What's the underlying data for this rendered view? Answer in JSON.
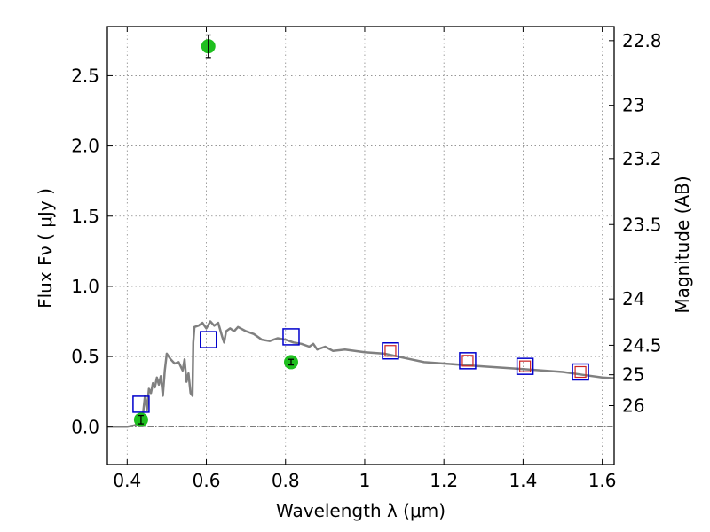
{
  "chart_data": {
    "type": "scatter",
    "xlabel": "Wavelength  λ (μm)",
    "ylabel": "Flux  Fν  ( μJy )",
    "ylabel_right": "Magnitude (AB)",
    "xlim": [
      0.35,
      1.63
    ],
    "ylim": [
      -0.27,
      2.85
    ],
    "grid": true,
    "x_ticks": [
      0.4,
      0.6,
      0.8,
      1.0,
      1.2,
      1.4,
      1.6
    ],
    "x_tick_labels": [
      "0.4",
      "0.6",
      "0.8",
      "1",
      "1.2",
      "1.4",
      "1.6"
    ],
    "y_ticks": [
      0.0,
      0.5,
      1.0,
      1.5,
      2.0,
      2.5
    ],
    "y_tick_labels": [
      "0.0",
      "0.5",
      "1.0",
      "1.5",
      "2.0",
      "2.5"
    ],
    "right_ticks": [
      {
        "flux": 2.75,
        "label": "22.8"
      },
      {
        "flux": 2.29,
        "label": "23"
      },
      {
        "flux": 1.91,
        "label": "23.2"
      },
      {
        "flux": 1.44,
        "label": "23.5"
      },
      {
        "flux": 0.91,
        "label": "24"
      },
      {
        "flux": 0.58,
        "label": "24.5"
      },
      {
        "flux": 0.37,
        "label": "25"
      },
      {
        "flux": 0.15,
        "label": "26"
      }
    ],
    "colors": {
      "model": "#808080",
      "observed": "#1fbf1f",
      "model_box": "#0000cc",
      "synthetic_box": "#cc2222",
      "grid": "#888888",
      "zero_line": "#555555"
    },
    "series": [
      {
        "style": "line",
        "points": [
          [
            0.35,
            0.0
          ],
          [
            0.4,
            0.0
          ],
          [
            0.42,
            0.01
          ],
          [
            0.43,
            0.04
          ],
          [
            0.44,
            0.09
          ],
          [
            0.445,
            0.22
          ],
          [
            0.45,
            0.12
          ],
          [
            0.455,
            0.27
          ],
          [
            0.46,
            0.24
          ],
          [
            0.465,
            0.31
          ],
          [
            0.47,
            0.28
          ],
          [
            0.475,
            0.35
          ],
          [
            0.48,
            0.3
          ],
          [
            0.485,
            0.36
          ],
          [
            0.49,
            0.22
          ],
          [
            0.495,
            0.4
          ],
          [
            0.5,
            0.52
          ],
          [
            0.51,
            0.48
          ],
          [
            0.52,
            0.45
          ],
          [
            0.53,
            0.46
          ],
          [
            0.54,
            0.4
          ],
          [
            0.545,
            0.48
          ],
          [
            0.55,
            0.32
          ],
          [
            0.555,
            0.38
          ],
          [
            0.56,
            0.24
          ],
          [
            0.565,
            0.22
          ],
          [
            0.567,
            0.6
          ],
          [
            0.57,
            0.71
          ],
          [
            0.58,
            0.72
          ],
          [
            0.59,
            0.74
          ],
          [
            0.6,
            0.7
          ],
          [
            0.61,
            0.75
          ],
          [
            0.62,
            0.72
          ],
          [
            0.63,
            0.74
          ],
          [
            0.64,
            0.64
          ],
          [
            0.645,
            0.6
          ],
          [
            0.65,
            0.68
          ],
          [
            0.66,
            0.7
          ],
          [
            0.67,
            0.68
          ],
          [
            0.68,
            0.71
          ],
          [
            0.7,
            0.68
          ],
          [
            0.72,
            0.66
          ],
          [
            0.74,
            0.62
          ],
          [
            0.76,
            0.61
          ],
          [
            0.78,
            0.63
          ],
          [
            0.8,
            0.62
          ],
          [
            0.82,
            0.6
          ],
          [
            0.84,
            0.59
          ],
          [
            0.86,
            0.57
          ],
          [
            0.87,
            0.59
          ],
          [
            0.88,
            0.55
          ],
          [
            0.9,
            0.57
          ],
          [
            0.92,
            0.54
          ],
          [
            0.95,
            0.55
          ],
          [
            1.0,
            0.53
          ],
          [
            1.05,
            0.52
          ],
          [
            1.1,
            0.49
          ],
          [
            1.15,
            0.46
          ],
          [
            1.2,
            0.45
          ],
          [
            1.25,
            0.44
          ],
          [
            1.3,
            0.43
          ],
          [
            1.35,
            0.42
          ],
          [
            1.4,
            0.41
          ],
          [
            1.45,
            0.4
          ],
          [
            1.5,
            0.39
          ],
          [
            1.55,
            0.37
          ],
          [
            1.6,
            0.35
          ],
          [
            1.63,
            0.345
          ]
        ]
      },
      {
        "style": "points",
        "points": [
          {
            "x": 0.435,
            "y": 0.05,
            "err": 0.03
          },
          {
            "x": 0.605,
            "y": 2.71,
            "err": 0.08
          },
          {
            "x": 0.814,
            "y": 0.46,
            "err": 0.02
          }
        ]
      },
      {
        "style": "open-squares",
        "points": [
          {
            "x": 0.435,
            "y": 0.16
          },
          {
            "x": 0.605,
            "y": 0.62
          },
          {
            "x": 0.814,
            "y": 0.64
          },
          {
            "x": 1.065,
            "y": 0.54
          },
          {
            "x": 1.26,
            "y": 0.47
          },
          {
            "x": 1.405,
            "y": 0.43
          },
          {
            "x": 1.545,
            "y": 0.39
          }
        ]
      },
      {
        "style": "small-squares",
        "points": [
          {
            "x": 1.065,
            "y": 0.54
          },
          {
            "x": 1.26,
            "y": 0.47
          },
          {
            "x": 1.405,
            "y": 0.43
          },
          {
            "x": 1.545,
            "y": 0.39
          }
        ]
      }
    ]
  }
}
